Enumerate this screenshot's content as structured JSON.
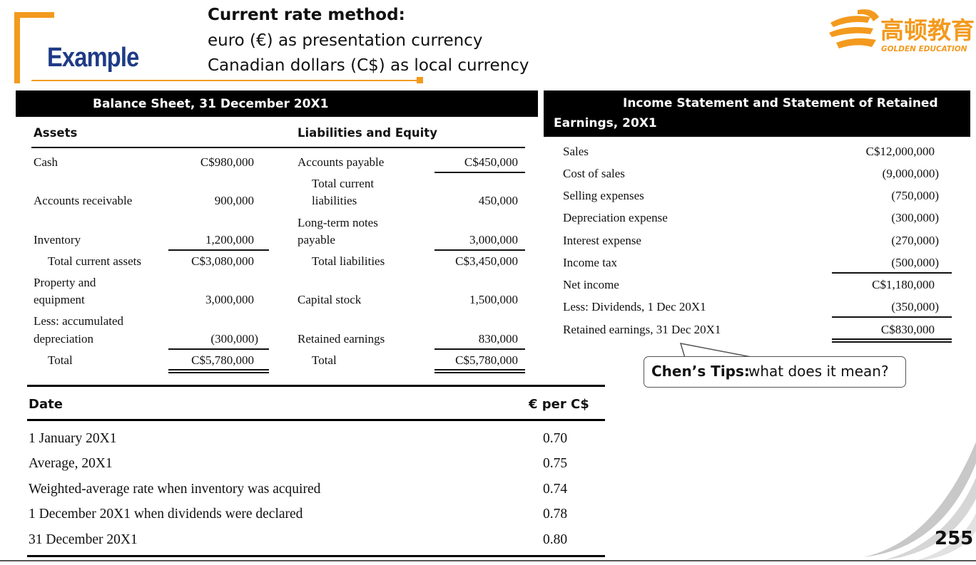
{
  "header": {
    "example_label": "Example",
    "title_line1": "Current rate method:",
    "title_line2": "euro (€) as presentation currency",
    "title_line3": "Canadian dollars (C$) as local currency",
    "accent_color": "#f39a1e",
    "example_color": "#1f3b86"
  },
  "logo": {
    "chinese_text": "高顿教育",
    "english_text": "GOLDEN EDUCATION",
    "icon": "golden-education-logo-icon"
  },
  "balance_sheet": {
    "title": "Balance Sheet, 31 December 20X1",
    "assets_header": "Assets",
    "liabilities_header": "Liabilities and Equity",
    "assets": [
      {
        "label": "Cash",
        "value": "C$980,000"
      },
      {
        "label": "Accounts receivable",
        "value": "900,000"
      },
      {
        "label": "Inventory",
        "value": "1,200,000"
      },
      {
        "label": "Total current assets",
        "value": "C$3,080,000"
      },
      {
        "label_line1": "Property and",
        "label_line2": "equipment",
        "value": "3,000,000"
      },
      {
        "label_line1": "Less: accumulated",
        "label_line2": "depreciation",
        "value": "(300,000)"
      },
      {
        "label": "Total",
        "value": "C$5,780,000"
      }
    ],
    "liabilities": [
      {
        "label": "Accounts payable",
        "value": "C$450,000"
      },
      {
        "label_line1": "Total current",
        "label_line2": "liabilities",
        "value": "450,000"
      },
      {
        "label_line1": "Long-term notes",
        "label_line2": "payable",
        "value": "3,000,000"
      },
      {
        "label": "Total liabilities",
        "value": "C$3,450,000"
      },
      {
        "label": "Capital stock",
        "value": "1,500,000"
      },
      {
        "label": "Retained earnings",
        "value": "830,000"
      },
      {
        "label": "Total",
        "value": "C$5,780,000"
      }
    ]
  },
  "income_statement": {
    "title_line1": "Income Statement and Statement of Retained",
    "title_line2": "Earnings, 20X1",
    "rows": [
      {
        "label": "Sales",
        "value": "C$12,000,000"
      },
      {
        "label": "Cost of sales",
        "value": "(9,000,000)"
      },
      {
        "label": "Selling expenses",
        "value": "(750,000)"
      },
      {
        "label": "Depreciation expense",
        "value": "(300,000)"
      },
      {
        "label": "Interest expense",
        "value": "(270,000)"
      },
      {
        "label": "Income tax",
        "value": "(500,000)"
      },
      {
        "label": "Net income",
        "value": "C$1,180,000"
      },
      {
        "label": "Less: Dividends, 1 Dec 20X1",
        "value": "(350,000)"
      },
      {
        "label": "Retained earnings, 31 Dec 20X1",
        "value": "C$830,000"
      }
    ]
  },
  "rates": {
    "col_date": "Date",
    "col_rate": "€ per C$",
    "rows": [
      {
        "date": "1 January 20X1",
        "rate": "0.70"
      },
      {
        "date": "Average, 20X1",
        "rate": "0.75"
      },
      {
        "date": "Weighted-average rate when inventory was acquired",
        "rate": "0.74"
      },
      {
        "date": "1 December 20X1 when dividends were declared",
        "rate": "0.78"
      },
      {
        "date": "31 December 20X1",
        "rate": "0.80"
      }
    ]
  },
  "tip": {
    "bold": "Chen’s Tips:",
    "text": "what does it mean?"
  },
  "page_number": "255"
}
